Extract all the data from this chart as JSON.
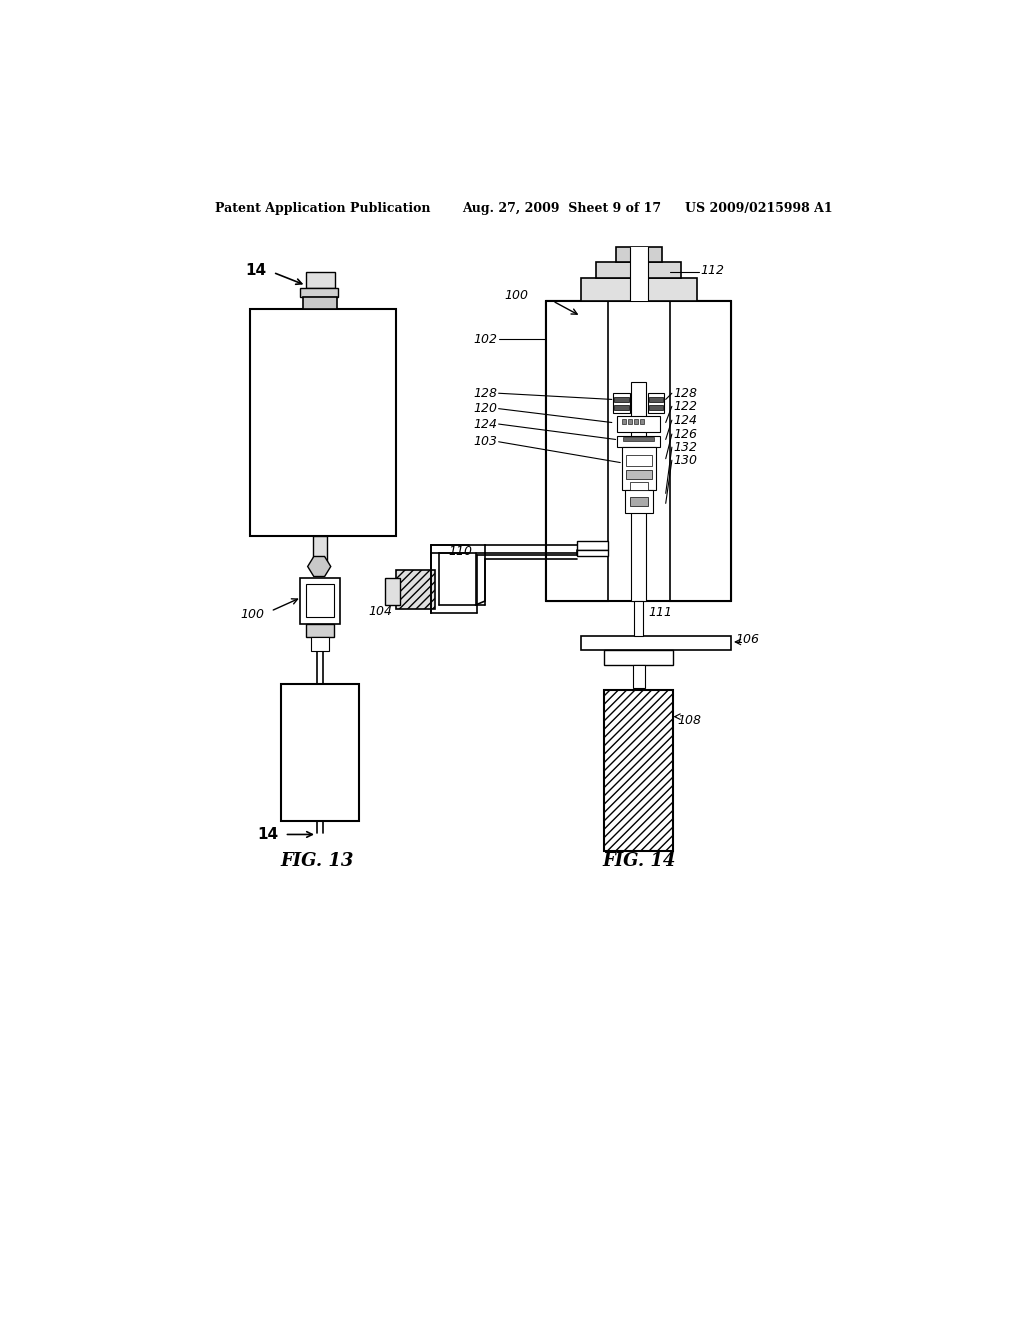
{
  "background_color": "#ffffff",
  "header_left": "Patent Application Publication",
  "header_mid": "Aug. 27, 2009  Sheet 9 of 17",
  "header_right": "US 2009/0215998 A1",
  "fig13_label": "FIG. 13",
  "fig14_label": "FIG. 14"
}
